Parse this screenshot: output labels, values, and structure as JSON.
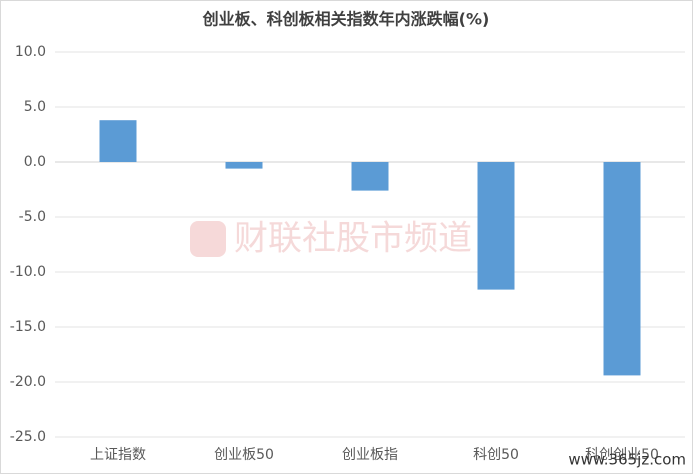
{
  "chart_data": {
    "type": "bar",
    "title": "创业板、科创板相关指数年内涨跌幅(%)",
    "categories": [
      "上证指数",
      "创业板50",
      "创业板指",
      "科创50",
      "科创创业50"
    ],
    "values": [
      3.8,
      -0.6,
      -2.6,
      -11.6,
      -19.4
    ],
    "color": "#5b9bd5",
    "ylim": [
      -25,
      10
    ],
    "yticks": [
      {
        "value": -25,
        "label": "-25.0"
      },
      {
        "value": -20,
        "label": "-20.0"
      },
      {
        "value": -15,
        "label": "-15.0"
      },
      {
        "value": -10,
        "label": "-10.0"
      },
      {
        "value": -5,
        "label": "-5.0"
      },
      {
        "value": 0,
        "label": "0.0"
      },
      {
        "value": 5,
        "label": "5.0"
      },
      {
        "value": 10,
        "label": "10.0"
      }
    ],
    "grid": true,
    "watermark": "财联社股市频道",
    "site_mark": "www.365jz.com"
  }
}
